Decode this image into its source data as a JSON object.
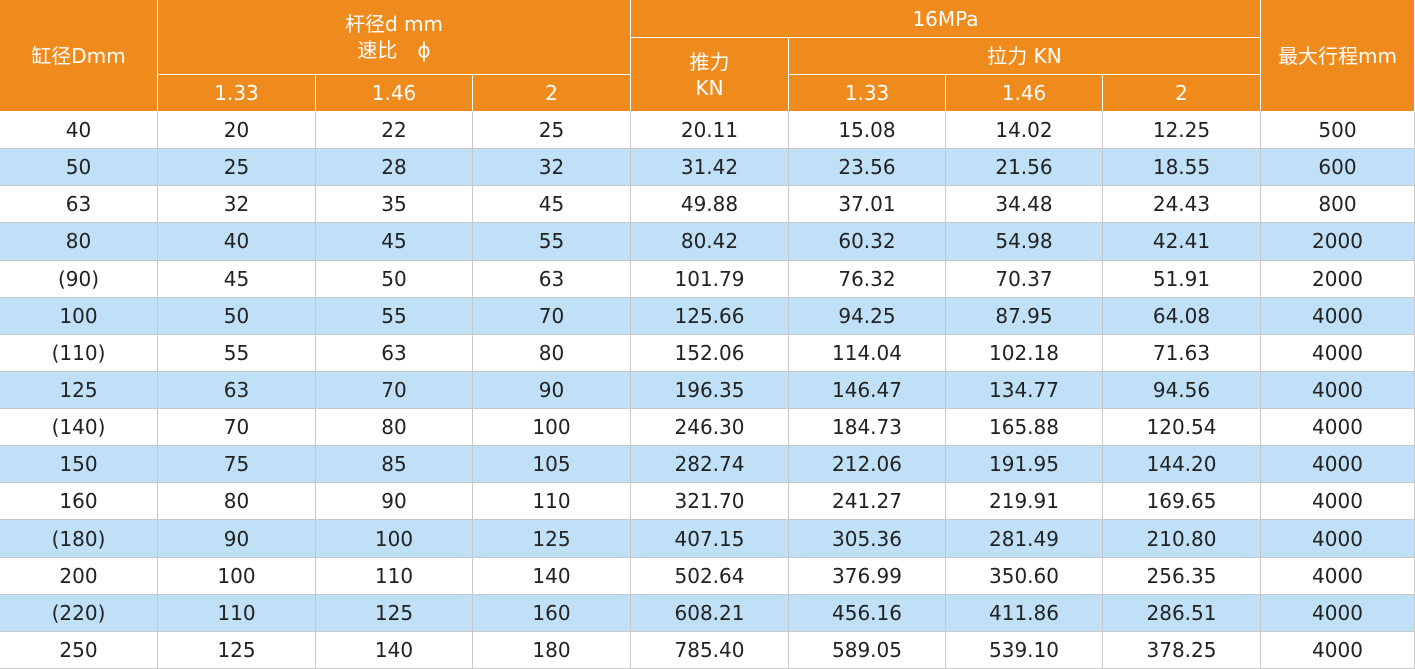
{
  "header": {
    "bore": "缸径Dmm",
    "rod_title": "杆径d mm",
    "speed_ratio": "速比　ϕ",
    "pressure": "16MPa",
    "push_force": "推力",
    "push_unit": "KN",
    "pull_force": "拉力 KN",
    "max_stroke": "最大行程mm",
    "rod_ratios": [
      "1.33",
      "1.46",
      "2"
    ],
    "pull_ratios": [
      "1.33",
      "1.46",
      "2"
    ]
  },
  "rows": [
    [
      "40",
      "20",
      "22",
      "25",
      "20.11",
      "15.08",
      "14.02",
      "12.25",
      "500"
    ],
    [
      "50",
      "25",
      "28",
      "32",
      "31.42",
      "23.56",
      "21.56",
      "18.55",
      "600"
    ],
    [
      "63",
      "32",
      "35",
      "45",
      "49.88",
      "37.01",
      "34.48",
      "24.43",
      "800"
    ],
    [
      "80",
      "40",
      "45",
      "55",
      "80.42",
      "60.32",
      "54.98",
      "42.41",
      "2000"
    ],
    [
      "(90)",
      "45",
      "50",
      "63",
      "101.79",
      "76.32",
      "70.37",
      "51.91",
      "2000"
    ],
    [
      "100",
      "50",
      "55",
      "70",
      "125.66",
      "94.25",
      "87.95",
      "64.08",
      "4000"
    ],
    [
      "(110)",
      "55",
      "63",
      "80",
      "152.06",
      "114.04",
      "102.18",
      "71.63",
      "4000"
    ],
    [
      "125",
      "63",
      "70",
      "90",
      "196.35",
      "146.47",
      "134.77",
      "94.56",
      "4000"
    ],
    [
      "(140)",
      "70",
      "80",
      "100",
      "246.30",
      "184.73",
      "165.88",
      "120.54",
      "4000"
    ],
    [
      "150",
      "75",
      "85",
      "105",
      "282.74",
      "212.06",
      "191.95",
      "144.20",
      "4000"
    ],
    [
      "160",
      "80",
      "90",
      "110",
      "321.70",
      "241.27",
      "219.91",
      "169.65",
      "4000"
    ],
    [
      "(180)",
      "90",
      "100",
      "125",
      "407.15",
      "305.36",
      "281.49",
      "210.80",
      "4000"
    ],
    [
      "200",
      "100",
      "110",
      "140",
      "502.64",
      "376.99",
      "350.60",
      "256.35",
      "4000"
    ],
    [
      "(220)",
      "110",
      "125",
      "160",
      "608.21",
      "456.16",
      "411.86",
      "286.51",
      "4000"
    ],
    [
      "250",
      "125",
      "140",
      "180",
      "785.40",
      "589.05",
      "539.10",
      "378.25",
      "4000"
    ]
  ]
}
